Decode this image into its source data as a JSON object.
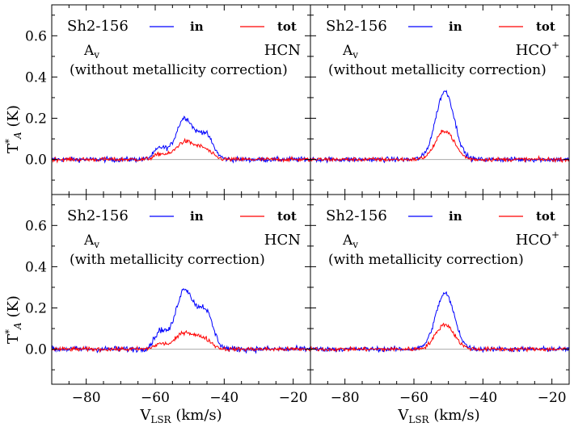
{
  "chart_data": [
    {
      "type": "line",
      "panel": "top-left",
      "source": "Sh2-156",
      "line": "HCN",
      "av_symbol": "A",
      "av_sub": "v",
      "note": "(without metallicity correction)",
      "legend": [
        "in",
        "tot"
      ],
      "series": [
        {
          "name": "in",
          "color": "#0000ff",
          "peaks": [
            {
              "v": -51.5,
              "t": 0.2,
              "w": 2.5
            },
            {
              "v": -45.5,
              "t": 0.12,
              "w": 2.2
            },
            {
              "v": -58.5,
              "t": 0.055,
              "w": 1.8
            }
          ],
          "noise": 0.012
        },
        {
          "name": "tot",
          "color": "#ff0000",
          "peaks": [
            {
              "v": -51.5,
              "t": 0.085,
              "w": 2.6
            },
            {
              "v": -46,
              "t": 0.05,
              "w": 2.3
            },
            {
              "v": -58.5,
              "t": 0.025,
              "w": 1.8
            }
          ],
          "noise": 0.01
        }
      ],
      "xlim": [
        -90,
        -15
      ],
      "ylim": [
        -0.17,
        0.75
      ],
      "yticks": [
        0.0,
        0.2,
        0.4,
        0.6
      ],
      "ytick_labels": [
        "0.0",
        "0.2",
        "0.4",
        "0.6"
      ],
      "ylabel": "T*A (K)"
    },
    {
      "type": "line",
      "panel": "top-right",
      "source": "Sh2-156",
      "line": "HCO",
      "line_sup": "+",
      "av_symbol": "A",
      "av_sub": "v",
      "note": "(without metallicity correction)",
      "legend": [
        "in",
        "tot"
      ],
      "series": [
        {
          "name": "in",
          "color": "#0000ff",
          "peaks": [
            {
              "v": -51,
              "t": 0.33,
              "w": 2.7
            }
          ],
          "noise": 0.012
        },
        {
          "name": "tot",
          "color": "#ff0000",
          "peaks": [
            {
              "v": -51,
              "t": 0.14,
              "w": 2.7
            }
          ],
          "noise": 0.01
        }
      ],
      "xlim": [
        -90,
        -15
      ],
      "ylim": [
        -0.17,
        0.75
      ]
    },
    {
      "type": "line",
      "panel": "bottom-left",
      "source": "Sh2-156",
      "line": "HCN",
      "av_symbol": "A",
      "av_sub": "v",
      "note": "(with metallicity correction)",
      "legend": [
        "in",
        "tot"
      ],
      "series": [
        {
          "name": "in",
          "color": "#0000ff",
          "peaks": [
            {
              "v": -51.5,
              "t": 0.29,
              "w": 2.6
            },
            {
              "v": -45.5,
              "t": 0.18,
              "w": 2.2
            },
            {
              "v": -58.5,
              "t": 0.085,
              "w": 1.8
            }
          ],
          "noise": 0.014
        },
        {
          "name": "tot",
          "color": "#ff0000",
          "peaks": [
            {
              "v": -51.5,
              "t": 0.08,
              "w": 2.6
            },
            {
              "v": -46,
              "t": 0.05,
              "w": 2.3
            },
            {
              "v": -58.5,
              "t": 0.025,
              "w": 1.8
            }
          ],
          "noise": 0.01
        }
      ],
      "xlim": [
        -90,
        -15
      ],
      "ylim": [
        -0.17,
        0.75
      ],
      "yticks": [
        0.0,
        0.2,
        0.4,
        0.6
      ],
      "ytick_labels": [
        "0.0",
        "0.2",
        "0.4",
        "0.6"
      ],
      "ylabel": "T*A (K)",
      "xticks": [
        -80,
        -60,
        -40,
        -20
      ],
      "xtick_labels": [
        "−80",
        "−60",
        "−40",
        "−20"
      ],
      "xlabel": "V_LSR (km/s)"
    },
    {
      "type": "line",
      "panel": "bottom-right",
      "source": "Sh2-156",
      "line": "HCO",
      "line_sup": "+",
      "av_symbol": "A",
      "av_sub": "v",
      "note": "(with metallicity correction)",
      "legend": [
        "in",
        "tot"
      ],
      "series": [
        {
          "name": "in",
          "color": "#0000ff",
          "peaks": [
            {
              "v": -51,
              "t": 0.27,
              "w": 2.7
            }
          ],
          "noise": 0.012
        },
        {
          "name": "tot",
          "color": "#ff0000",
          "peaks": [
            {
              "v": -51,
              "t": 0.12,
              "w": 2.7
            }
          ],
          "noise": 0.01
        }
      ],
      "xlim": [
        -90,
        -15
      ],
      "ylim": [
        -0.17,
        0.75
      ],
      "xticks": [
        -80,
        -60,
        -40,
        -20
      ],
      "xtick_labels": [
        "−80",
        "−60",
        "−40",
        "−20"
      ],
      "xlabel": "V_LSR (km/s)"
    }
  ],
  "axis_titles": {
    "ylabel_main": "T",
    "ylabel_sup": "*",
    "ylabel_sub": "A",
    "ylabel_unit": " (K)",
    "xlabel_main": "V",
    "xlabel_sub": "LSR",
    "xlabel_unit": " (km/s)"
  },
  "colors": {
    "in": "#0000ff",
    "tot": "#ff0000",
    "zero_line": "#aaaaaa",
    "frame": "#000000"
  }
}
